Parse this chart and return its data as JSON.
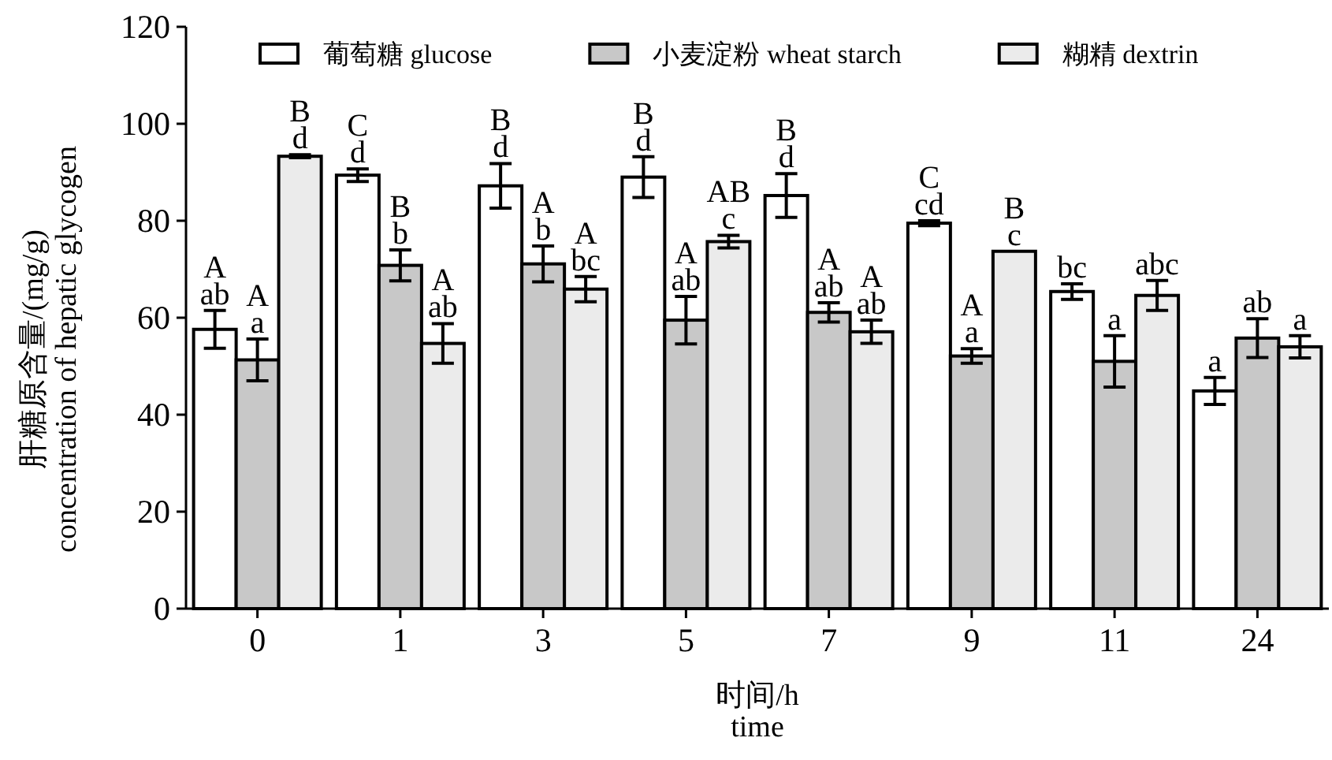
{
  "chart_data": {
    "type": "bar",
    "xlabel": "时间/h\ntime",
    "ylabel": "肝糖原含量/(mg/g)\nconcentration of hepatic glycogen",
    "categories": [
      "0",
      "1",
      "3",
      "5",
      "7",
      "9",
      "11",
      "24"
    ],
    "ylim": [
      0,
      120
    ],
    "yticks": [
      0,
      20,
      40,
      60,
      80,
      100,
      120
    ],
    "legend": "top",
    "grid": false,
    "series": [
      {
        "name": "葡萄糖 glucose",
        "color": "#ffffff",
        "values": [
          57.6,
          89.4,
          87.2,
          89.0,
          85.2,
          79.5,
          65.4,
          44.9
        ],
        "errors": [
          3.9,
          1.3,
          4.6,
          4.2,
          4.5,
          0.5,
          1.6,
          2.8
        ],
        "value_labels": [
          "A\nab",
          "C\nd",
          "B\nd",
          "B\nd",
          "B\nd",
          "C\ncd",
          "bc",
          "a"
        ]
      },
      {
        "name": "小麦淀粉 wheat starch",
        "color": "#c8c8c8",
        "values": [
          51.3,
          70.8,
          71.1,
          59.5,
          61.1,
          52.1,
          51.0,
          55.8
        ],
        "errors": [
          4.3,
          3.2,
          3.7,
          4.9,
          2.0,
          1.5,
          5.3,
          4.0
        ],
        "value_labels": [
          "A\na",
          "B\nb",
          "A\nb",
          "A\nab",
          "A\nab",
          "A\na",
          "a",
          "ab"
        ]
      },
      {
        "name": "糊精 dextrin",
        "color": "#ebebeb",
        "values": [
          93.3,
          54.7,
          65.9,
          75.7,
          57.1,
          73.7,
          64.6,
          54.0
        ],
        "errors": [
          0.3,
          4.1,
          2.6,
          1.3,
          2.4,
          null,
          3.1,
          2.3
        ],
        "value_labels": [
          "B\nd",
          "A\nab",
          "A\nbc",
          "AB\nc",
          "A\nab",
          "B\nc",
          "abc",
          "a"
        ]
      }
    ]
  }
}
